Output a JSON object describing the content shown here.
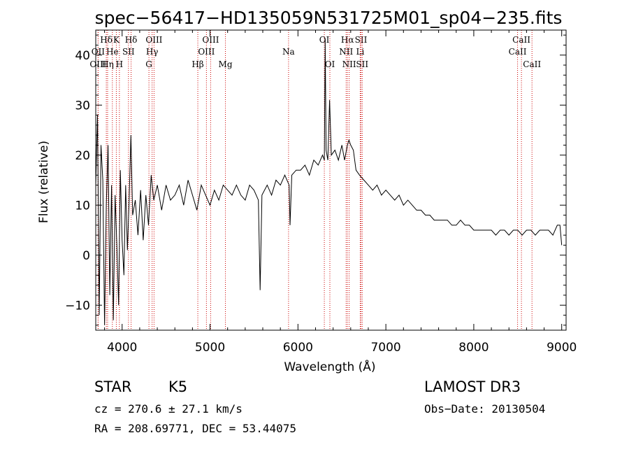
{
  "chart_data": {
    "type": "line",
    "title": "spec−56417−HD135059N531725M01_sp04−235.fits",
    "xlabel": "Wavelength (Å)",
    "ylabel": "Flux (relative)",
    "xlim": [
      3700,
      9050
    ],
    "ylim": [
      -15,
      45
    ],
    "x_ticks": [
      4000,
      5000,
      6000,
      7000,
      8000,
      9000
    ],
    "x_tick_labels": [
      "4000",
      "5000",
      "6000",
      "7000",
      "8000",
      "9000"
    ],
    "y_ticks": [
      -10,
      0,
      10,
      20,
      30,
      40
    ],
    "y_tick_labels": [
      "−10",
      "0",
      "10",
      "20",
      "30",
      "40"
    ],
    "series": [
      {
        "name": "flux",
        "color": "#000000",
        "points": [
          [
            3700,
            14
          ],
          [
            3720,
            28
          ],
          [
            3740,
            -12
          ],
          [
            3760,
            22
          ],
          [
            3780,
            15
          ],
          [
            3800,
            -14
          ],
          [
            3820,
            10
          ],
          [
            3840,
            22
          ],
          [
            3860,
            -8
          ],
          [
            3880,
            14
          ],
          [
            3900,
            -13
          ],
          [
            3920,
            12
          ],
          [
            3940,
            2
          ],
          [
            3960,
            -10
          ],
          [
            3980,
            17
          ],
          [
            4000,
            3
          ],
          [
            4020,
            -4
          ],
          [
            4040,
            14
          ],
          [
            4060,
            1
          ],
          [
            4080,
            11
          ],
          [
            4100,
            24
          ],
          [
            4120,
            8
          ],
          [
            4150,
            11
          ],
          [
            4180,
            4
          ],
          [
            4210,
            13
          ],
          [
            4240,
            3
          ],
          [
            4270,
            12
          ],
          [
            4300,
            6
          ],
          [
            4330,
            16
          ],
          [
            4360,
            11
          ],
          [
            4400,
            14
          ],
          [
            4450,
            9
          ],
          [
            4500,
            14
          ],
          [
            4550,
            11
          ],
          [
            4600,
            12
          ],
          [
            4650,
            14
          ],
          [
            4700,
            10
          ],
          [
            4750,
            15
          ],
          [
            4800,
            12
          ],
          [
            4850,
            9
          ],
          [
            4900,
            14
          ],
          [
            4950,
            12
          ],
          [
            5000,
            10
          ],
          [
            5050,
            13
          ],
          [
            5100,
            11
          ],
          [
            5150,
            14
          ],
          [
            5200,
            13
          ],
          [
            5250,
            12
          ],
          [
            5300,
            14
          ],
          [
            5350,
            12
          ],
          [
            5400,
            11
          ],
          [
            5450,
            14
          ],
          [
            5500,
            13
          ],
          [
            5550,
            11
          ],
          [
            5570,
            -7
          ],
          [
            5590,
            12
          ],
          [
            5650,
            14
          ],
          [
            5700,
            12
          ],
          [
            5750,
            15
          ],
          [
            5800,
            14
          ],
          [
            5850,
            16
          ],
          [
            5900,
            14
          ],
          [
            5910,
            6
          ],
          [
            5930,
            16
          ],
          [
            5980,
            17
          ],
          [
            6030,
            17
          ],
          [
            6080,
            18
          ],
          [
            6130,
            16
          ],
          [
            6180,
            19
          ],
          [
            6230,
            18
          ],
          [
            6280,
            20
          ],
          [
            6300,
            19
          ],
          [
            6310,
            43
          ],
          [
            6320,
            21
          ],
          [
            6340,
            19
          ],
          [
            6360,
            31
          ],
          [
            6380,
            20
          ],
          [
            6420,
            21
          ],
          [
            6460,
            19
          ],
          [
            6500,
            22
          ],
          [
            6530,
            19
          ],
          [
            6563,
            22
          ],
          [
            6580,
            23
          ],
          [
            6600,
            22
          ],
          [
            6630,
            21
          ],
          [
            6660,
            17
          ],
          [
            6700,
            16
          ],
          [
            6750,
            15
          ],
          [
            6800,
            14
          ],
          [
            6850,
            13
          ],
          [
            6900,
            14
          ],
          [
            6950,
            12
          ],
          [
            7000,
            13
          ],
          [
            7050,
            12
          ],
          [
            7100,
            11
          ],
          [
            7150,
            12
          ],
          [
            7200,
            10
          ],
          [
            7250,
            11
          ],
          [
            7300,
            10
          ],
          [
            7350,
            9
          ],
          [
            7400,
            9
          ],
          [
            7450,
            8
          ],
          [
            7500,
            8
          ],
          [
            7550,
            7
          ],
          [
            7600,
            7
          ],
          [
            7650,
            7
          ],
          [
            7700,
            7
          ],
          [
            7750,
            6
          ],
          [
            7800,
            6
          ],
          [
            7850,
            7
          ],
          [
            7900,
            6
          ],
          [
            7950,
            6
          ],
          [
            8000,
            5
          ],
          [
            8050,
            5
          ],
          [
            8100,
            5
          ],
          [
            8150,
            5
          ],
          [
            8200,
            5
          ],
          [
            8250,
            4
          ],
          [
            8300,
            5
          ],
          [
            8350,
            5
          ],
          [
            8400,
            4
          ],
          [
            8450,
            5
          ],
          [
            8500,
            5
          ],
          [
            8550,
            4
          ],
          [
            8600,
            5
          ],
          [
            8650,
            5
          ],
          [
            8700,
            4
          ],
          [
            8750,
            5
          ],
          [
            8800,
            5
          ],
          [
            8850,
            5
          ],
          [
            8900,
            4
          ],
          [
            8950,
            6
          ],
          [
            8980,
            6
          ],
          [
            9000,
            2
          ]
        ]
      }
    ],
    "line_markers": {
      "color": "#cc0000",
      "style": "dotted",
      "lines": [
        {
          "label": "Hδ",
          "wavelength": 3820,
          "row": 1
        },
        {
          "label": "K",
          "wavelength": 3934,
          "row": 1
        },
        {
          "label": "Hδ",
          "wavelength": 4102,
          "row": 1
        },
        {
          "label": "OIII",
          "wavelength": 4363,
          "row": 1
        },
        {
          "label": "OIII",
          "wavelength": 5007,
          "row": 1
        },
        {
          "label": "OI",
          "wavelength": 6300,
          "row": 1
        },
        {
          "label": "Hα",
          "wavelength": 6563,
          "row": 1
        },
        {
          "label": "SII",
          "wavelength": 6717,
          "row": 1
        },
        {
          "label": "CaII",
          "wavelength": 8542,
          "row": 1
        },
        {
          "label": "OII",
          "wavelength": 3727,
          "row": 2
        },
        {
          "label": "He",
          "wavelength": 3889,
          "row": 2
        },
        {
          "label": "SII",
          "wavelength": 4072,
          "row": 2
        },
        {
          "label": "Hγ",
          "wavelength": 4341,
          "row": 2
        },
        {
          "label": "OIII",
          "wavelength": 4959,
          "row": 2
        },
        {
          "label": "Na",
          "wavelength": 5893,
          "row": 2
        },
        {
          "label": "NII",
          "wavelength": 6548,
          "row": 2
        },
        {
          "label": "Li",
          "wavelength": 6708,
          "row": 2
        },
        {
          "label": "CaII",
          "wavelength": 8498,
          "row": 2
        },
        {
          "label": "OIII",
          "wavelength": 3727,
          "row": 3
        },
        {
          "label": "Hη",
          "wavelength": 3835,
          "row": 3
        },
        {
          "label": "H",
          "wavelength": 3969,
          "row": 3
        },
        {
          "label": "G",
          "wavelength": 4305,
          "row": 3
        },
        {
          "label": "Hβ",
          "wavelength": 4861,
          "row": 3
        },
        {
          "label": "Mg",
          "wavelength": 5175,
          "row": 3
        },
        {
          "label": "OI",
          "wavelength": 6363,
          "row": 3
        },
        {
          "label": "NII",
          "wavelength": 6583,
          "row": 3
        },
        {
          "label": "SII",
          "wavelength": 6731,
          "row": 3
        },
        {
          "label": "CaII",
          "wavelength": 8662,
          "row": 3
        }
      ]
    }
  },
  "info": {
    "class": "STAR",
    "subclass": "K5",
    "survey": "LAMOST DR3",
    "cz": "cz = 270.6 ± 27.1 km/s",
    "obs_date": "Obs−Date: 20130504",
    "coords": "RA = 208.69771, DEC =  53.44075"
  }
}
